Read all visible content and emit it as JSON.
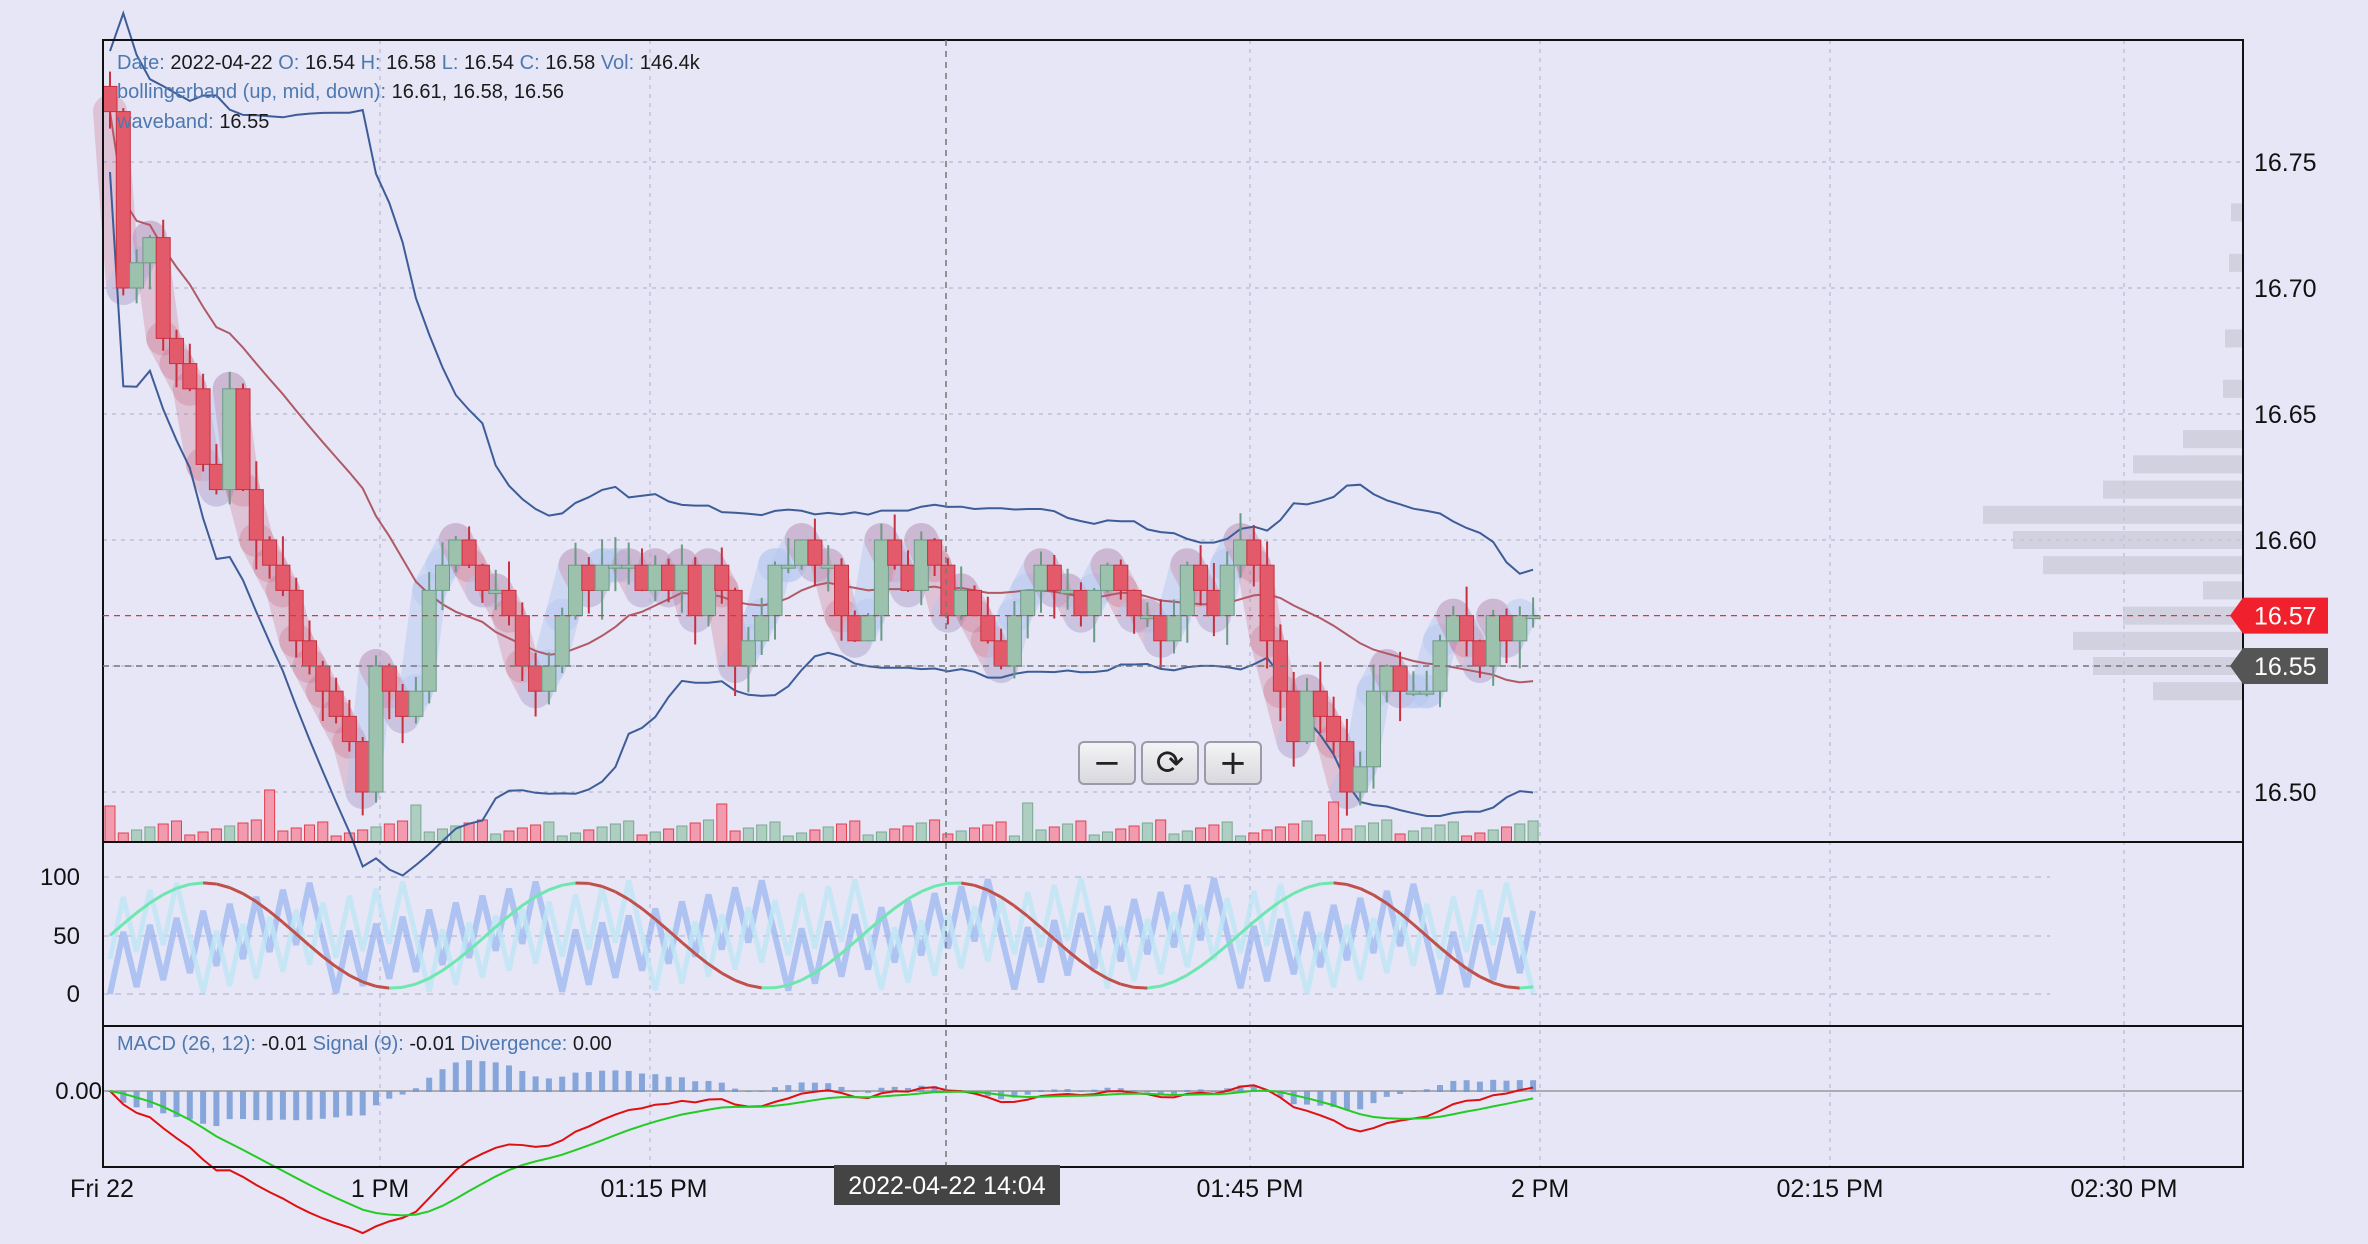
{
  "colors": {
    "up": "#9cc2ae",
    "down": "#e35a6a",
    "axis": "#111111",
    "grid": "#b8b8d4",
    "bb": "#3d5d99",
    "mid": "#b05a66"
  },
  "legend": {
    "date_label": "Date:",
    "date": "2022-04-22",
    "o_label": "O:",
    "o": "16.54",
    "h_label": "H:",
    "h": "16.58",
    "l_label": "L:",
    "l": "16.54",
    "c_label": "C:",
    "c": "16.58",
    "vol_label": "Vol:",
    "vol": "146.4k",
    "bb_label": "bollingerband (up, mid, down):",
    "bb": "16.61, 16.58, 16.56",
    "wave_label": "waveband:",
    "wave": "16.55",
    "macd_label": "MACD (26, 12):",
    "macd": "-0.01",
    "signal_label": "Signal (9):",
    "signal": "-0.01",
    "div_label": "Divergence:",
    "div": "0.00"
  },
  "crosshair": {
    "time": "2022-04-22 14:04"
  },
  "price_tags": {
    "last": "16.57",
    "cross": "16.55"
  },
  "zoom": {
    "minus": "−",
    "reset": "⟳",
    "plus": "+"
  },
  "chart_data": {
    "type": "candlestick",
    "price_axis": {
      "ticks": [
        "16.50",
        "16.55",
        "16.60",
        "16.65",
        "16.70",
        "16.75"
      ],
      "range": [
        16.48,
        16.8
      ]
    },
    "stoch_axis": {
      "ticks": [
        "0",
        "50",
        "100"
      ]
    },
    "macd_axis": {
      "ticks": [
        "0.00"
      ]
    },
    "time_ticks": [
      "Fri 22",
      "1 PM",
      "01:15 PM",
      "01:45 PM",
      "2 PM",
      "02:15 PM",
      "02:30 PM"
    ],
    "closes": [
      16.77,
      16.7,
      16.71,
      16.72,
      16.68,
      16.67,
      16.66,
      16.63,
      16.62,
      16.66,
      16.62,
      16.6,
      16.59,
      16.58,
      16.56,
      16.55,
      16.54,
      16.53,
      16.52,
      16.5,
      16.55,
      16.54,
      16.53,
      16.54,
      16.58,
      16.59,
      16.6,
      16.59,
      16.58,
      16.58,
      16.57,
      16.55,
      16.54,
      16.55,
      16.57,
      16.59,
      16.58,
      16.59,
      16.59,
      16.59,
      16.58,
      16.59,
      16.58,
      16.59,
      16.57,
      16.59,
      16.58,
      16.55,
      16.56,
      16.57,
      16.59,
      16.59,
      16.6,
      16.59,
      16.59,
      16.57,
      16.56,
      16.57,
      16.6,
      16.59,
      16.58,
      16.6,
      16.59,
      16.57,
      16.58,
      16.57,
      16.56,
      16.55,
      16.57,
      16.58,
      16.59,
      16.58,
      16.58,
      16.57,
      16.58,
      16.59,
      16.58,
      16.57,
      16.57,
      16.56,
      16.57,
      16.59,
      16.58,
      16.57,
      16.59,
      16.6,
      16.59,
      16.56,
      16.54,
      16.52,
      16.54,
      16.53,
      16.52,
      16.5,
      16.51,
      16.54,
      16.55,
      16.54,
      16.54,
      16.54,
      16.56,
      16.57,
      16.56,
      16.55,
      16.57,
      16.56,
      16.57,
      16.57
    ],
    "macd_range": [
      -0.03,
      0.02
    ]
  }
}
